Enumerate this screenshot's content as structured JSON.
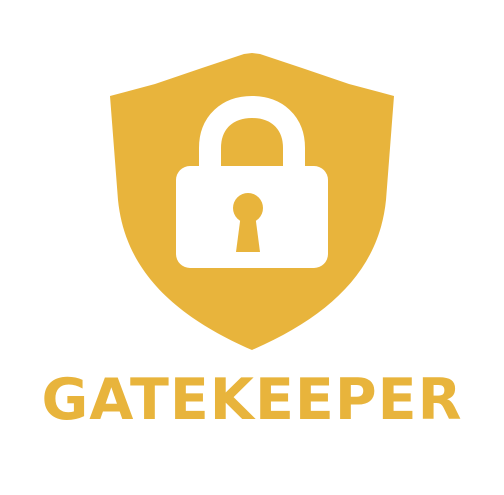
{
  "brand": {
    "name": "GATEKEEPER",
    "color": "#E8B43C",
    "icon": "shield-lock-icon"
  }
}
